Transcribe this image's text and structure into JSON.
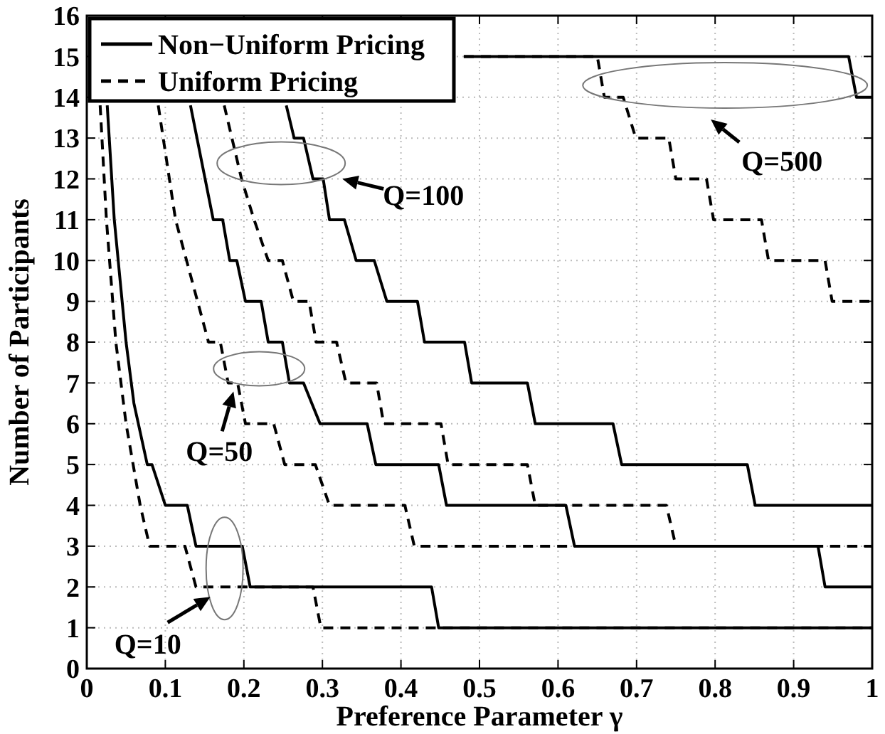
{
  "chart_data": {
    "type": "line",
    "xlabel": "Preference Parameter γ",
    "ylabel": "Number of Participants",
    "xlim": [
      0,
      1
    ],
    "ylim": [
      0,
      16
    ],
    "xticks": [
      0,
      0.1,
      0.2,
      0.3,
      0.4,
      0.5,
      0.6,
      0.7,
      0.8,
      0.9,
      1
    ],
    "yticks": [
      0,
      1,
      2,
      3,
      4,
      5,
      6,
      7,
      8,
      9,
      10,
      11,
      12,
      13,
      14,
      15,
      16
    ],
    "grid": true,
    "legend": "top left",
    "marker": "none",
    "series": [
      {
        "name": "Non−Uniform Pricing",
        "color": "#000000",
        "line_style": "solid",
        "x": [
          0.026,
          0.035,
          0.05,
          0.06,
          0.077,
          0.083,
          0.1,
          0.128,
          0.139,
          0.198,
          0.208,
          0.439,
          0.448,
          1
        ],
        "values": [
          13.8,
          11,
          8,
          6.5,
          5,
          5,
          4,
          4,
          3,
          3,
          2,
          2,
          1,
          1
        ]
      },
      {
        "name": "Uniform Pricing",
        "color": "#000000",
        "line_style": "dashed",
        "x": [
          0.017,
          0.025,
          0.037,
          0.05,
          0.068,
          0.08,
          0.125,
          0.139,
          0.288,
          0.298,
          1
        ],
        "values": [
          13.8,
          11,
          8,
          6,
          4,
          3,
          3,
          2,
          2,
          1,
          1
        ]
      },
      {
        "color": "#000000",
        "line_style": "solid",
        "x": [
          0.132,
          0.161,
          0.173,
          0.182,
          0.191,
          0.202,
          0.222,
          0.231,
          0.249,
          0.258,
          0.276,
          0.297,
          0.357,
          0.368,
          0.448,
          0.458,
          0.61,
          0.621,
          0.931,
          0.94,
          1
        ],
        "values": [
          13.8,
          11,
          11,
          10,
          10,
          9,
          9,
          8,
          8,
          7,
          7,
          6,
          6,
          5,
          5,
          4,
          4,
          3,
          3,
          2,
          2
        ]
      },
      {
        "color": "#000000",
        "line_style": "dashed",
        "x": [
          0.091,
          0.113,
          0.155,
          0.17,
          0.18,
          0.192,
          0.202,
          0.238,
          0.252,
          0.291,
          0.309,
          0.405,
          0.417,
          1
        ],
        "values": [
          13.8,
          11,
          8,
          8,
          7,
          7,
          6,
          6,
          5,
          5,
          4,
          4,
          3,
          3
        ]
      },
      {
        "color": "#000000",
        "line_style": "solid",
        "x": [
          0.254,
          0.264,
          0.276,
          0.288,
          0.301,
          0.309,
          0.328,
          0.343,
          0.366,
          0.382,
          0.421,
          0.43,
          0.481,
          0.49,
          0.561,
          0.571,
          0.67,
          0.681,
          0.841,
          0.851,
          1
        ],
        "values": [
          13.8,
          13,
          13,
          12,
          12,
          11,
          11,
          10,
          10,
          9,
          9,
          8,
          8,
          7,
          7,
          6,
          6,
          5,
          5,
          4,
          4
        ]
      },
      {
        "color": "#000000",
        "line_style": "dashed",
        "x": [
          0.175,
          0.197,
          0.213,
          0.231,
          0.249,
          0.263,
          0.283,
          0.292,
          0.318,
          0.33,
          0.369,
          0.378,
          0.451,
          0.46,
          0.561,
          0.571,
          0.738,
          0.75,
          1
        ],
        "values": [
          13.8,
          12,
          11,
          10,
          10,
          9,
          9,
          8,
          8,
          7,
          7,
          6,
          6,
          5,
          5,
          4,
          4,
          3,
          3
        ]
      },
      {
        "color": "#000000",
        "line_style": "solid",
        "x": [
          0.48,
          0.97,
          0.98,
          1
        ],
        "values": [
          15,
          15,
          14,
          14
        ]
      },
      {
        "color": "#000000",
        "line_style": "dashed",
        "x": [
          0.48,
          0.65,
          0.659,
          0.683,
          0.699,
          0.741,
          0.75,
          0.789,
          0.798,
          0.859,
          0.868,
          0.94,
          0.949,
          1
        ],
        "values": [
          15,
          15,
          14,
          14,
          13,
          13,
          12,
          12,
          11,
          11,
          10,
          10,
          9,
          9
        ]
      }
    ],
    "annotations": [
      {
        "text": "Q=10",
        "x": 0.17,
        "y": 2
      },
      {
        "text": "Q=50",
        "x": 0.185,
        "y": 7
      },
      {
        "text": "Q=100",
        "x": 0.3,
        "y": 12
      },
      "Q=500"
    ]
  }
}
